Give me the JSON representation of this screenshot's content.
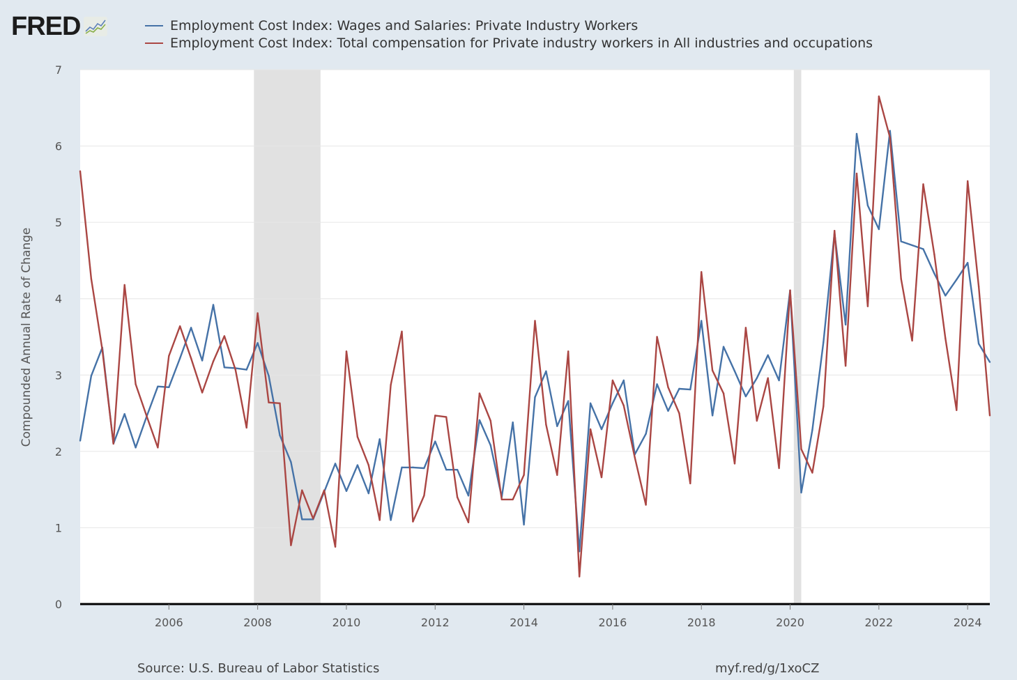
{
  "header": {
    "logo_text": "FRED",
    "logo_icon": "line-chart-icon"
  },
  "footer": {
    "source": "Source: U.S. Bureau of Labor Statistics",
    "link": "myf.red/g/1xoCZ"
  },
  "chart_data": {
    "type": "line",
    "title": "",
    "xlabel": "",
    "ylabel": "Compounded Annual Rate of Change",
    "xlim": [
      "2004-01-01",
      "2024-07-01"
    ],
    "ylim": [
      0,
      7
    ],
    "yticks": [
      "0",
      "1",
      "2",
      "3",
      "4",
      "5",
      "6",
      "7"
    ],
    "xticks": [
      "2006",
      "2008",
      "2010",
      "2012",
      "2014",
      "2016",
      "2018",
      "2020",
      "2022",
      "2024"
    ],
    "grid": true,
    "legend_placement": "top",
    "recessions": [
      [
        "2007-12-01",
        "2009-06-01"
      ],
      [
        "2020-02-01",
        "2020-04-01"
      ]
    ],
    "x": [
      "2004Q1",
      "2004Q2",
      "2004Q3",
      "2004Q4",
      "2005Q1",
      "2005Q2",
      "2005Q3",
      "2005Q4",
      "2006Q1",
      "2006Q2",
      "2006Q3",
      "2006Q4",
      "2007Q1",
      "2007Q2",
      "2007Q3",
      "2007Q4",
      "2008Q1",
      "2008Q2",
      "2008Q3",
      "2008Q4",
      "2009Q1",
      "2009Q2",
      "2009Q3",
      "2009Q4",
      "2010Q1",
      "2010Q2",
      "2010Q3",
      "2010Q4",
      "2011Q1",
      "2011Q2",
      "2011Q3",
      "2011Q4",
      "2012Q1",
      "2012Q2",
      "2012Q3",
      "2012Q4",
      "2013Q1",
      "2013Q2",
      "2013Q3",
      "2013Q4",
      "2014Q1",
      "2014Q2",
      "2014Q3",
      "2014Q4",
      "2015Q1",
      "2015Q2",
      "2015Q3",
      "2015Q4",
      "2016Q1",
      "2016Q2",
      "2016Q3",
      "2016Q4",
      "2017Q1",
      "2017Q2",
      "2017Q3",
      "2017Q4",
      "2018Q1",
      "2018Q2",
      "2018Q3",
      "2018Q4",
      "2019Q1",
      "2019Q2",
      "2019Q3",
      "2019Q4",
      "2020Q1",
      "2020Q2",
      "2020Q3",
      "2020Q4",
      "2021Q1",
      "2021Q2",
      "2021Q3",
      "2021Q4",
      "2022Q1",
      "2022Q2",
      "2022Q3",
      "2022Q4",
      "2023Q1",
      "2023Q2",
      "2023Q3",
      "2023Q4",
      "2024Q1",
      "2024Q2",
      "2024Q3"
    ],
    "series": [
      {
        "name": "Employment Cost Index: Wages and Salaries: Private Industry Workers",
        "color": "#4572a7",
        "values": [
          2.14,
          2.99,
          3.36,
          2.1,
          2.49,
          2.05,
          2.46,
          2.85,
          2.84,
          3.22,
          3.62,
          3.19,
          3.92,
          3.1,
          3.09,
          3.07,
          3.42,
          2.99,
          2.21,
          1.86,
          1.11,
          1.11,
          1.47,
          1.84,
          1.48,
          1.82,
          1.45,
          2.16,
          1.1,
          1.79,
          1.79,
          1.78,
          2.13,
          1.76,
          1.76,
          1.42,
          2.41,
          2.08,
          1.4,
          2.38,
          1.04,
          2.71,
          3.05,
          2.33,
          2.66,
          0.69,
          2.63,
          2.29,
          2.63,
          2.93,
          1.96,
          2.23,
          2.88,
          2.53,
          2.82,
          2.81,
          3.71,
          2.47,
          3.37,
          3.05,
          2.72,
          2.96,
          3.26,
          2.93,
          4.11,
          1.46,
          2.28,
          3.43,
          4.86,
          3.66,
          6.16,
          5.22,
          4.91,
          6.2,
          4.75,
          4.7,
          4.65,
          4.33,
          4.04,
          4.25,
          4.47,
          3.41,
          3.17
        ]
      },
      {
        "name": "Employment Cost Index: Total compensation for Private industry workers in All industries and occupations",
        "color": "#aa4643",
        "values": [
          5.67,
          4.26,
          3.33,
          2.1,
          4.18,
          2.88,
          2.46,
          2.05,
          3.25,
          3.64,
          3.22,
          2.77,
          3.18,
          3.51,
          3.07,
          2.31,
          3.81,
          2.64,
          2.63,
          0.77,
          1.49,
          1.12,
          1.49,
          0.75,
          3.31,
          2.19,
          1.82,
          1.1,
          2.87,
          3.57,
          1.08,
          1.42,
          2.47,
          2.45,
          1.4,
          1.07,
          2.76,
          2.4,
          1.37,
          1.37,
          1.69,
          3.71,
          2.35,
          1.69,
          3.31,
          0.36,
          2.29,
          1.66,
          2.93,
          2.6,
          1.92,
          1.3,
          3.5,
          2.84,
          2.5,
          1.58,
          4.35,
          3.06,
          2.76,
          1.84,
          3.62,
          2.4,
          2.96,
          1.78,
          4.11,
          2.03,
          1.72,
          2.59,
          4.89,
          3.12,
          5.64,
          3.9,
          6.65,
          6.11,
          4.26,
          3.45,
          5.5,
          4.58,
          3.48,
          2.54,
          5.54,
          4.16,
          2.47
        ]
      }
    ]
  }
}
